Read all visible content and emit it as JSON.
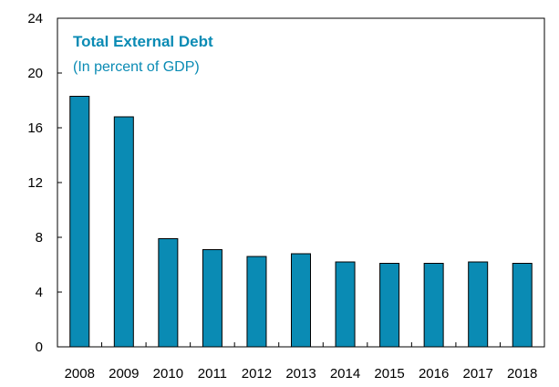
{
  "chart_data": {
    "type": "bar",
    "title": "Total External Debt",
    "subtitle": "(In percent of GDP)",
    "categories": [
      "2008",
      "2009",
      "2010",
      "2011",
      "2012",
      "2013",
      "2014",
      "2015",
      "2016",
      "2017",
      "2018"
    ],
    "values": [
      18.3,
      16.8,
      7.9,
      7.1,
      6.6,
      6.8,
      6.2,
      6.1,
      6.1,
      6.2,
      6.1
    ],
    "xlabel": "",
    "ylabel": "",
    "ylim": [
      0,
      24
    ],
    "yticks": [
      0,
      4,
      8,
      12,
      16,
      20,
      24
    ],
    "grid": false,
    "legend": "none",
    "colors": {
      "bar": "#0a8bb4",
      "bar_edge": "#000000",
      "title": "#0a8bb4",
      "axis": "#000000"
    }
  }
}
